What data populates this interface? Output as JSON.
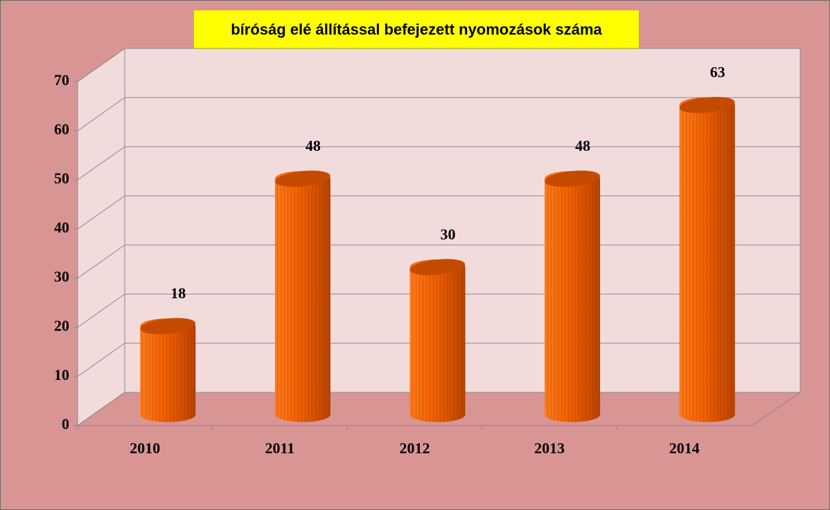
{
  "chart_data": {
    "type": "bar",
    "title": "bíróság elé állítással befejezett nyomozások száma",
    "categories": [
      "2010",
      "2011",
      "2012",
      "2013",
      "2014"
    ],
    "values": [
      18,
      48,
      30,
      48,
      63
    ],
    "color": "#e65c00",
    "ylim": [
      0,
      70
    ],
    "yticks": [
      0,
      10,
      20,
      30,
      40,
      50,
      60,
      70
    ],
    "grid": true
  }
}
